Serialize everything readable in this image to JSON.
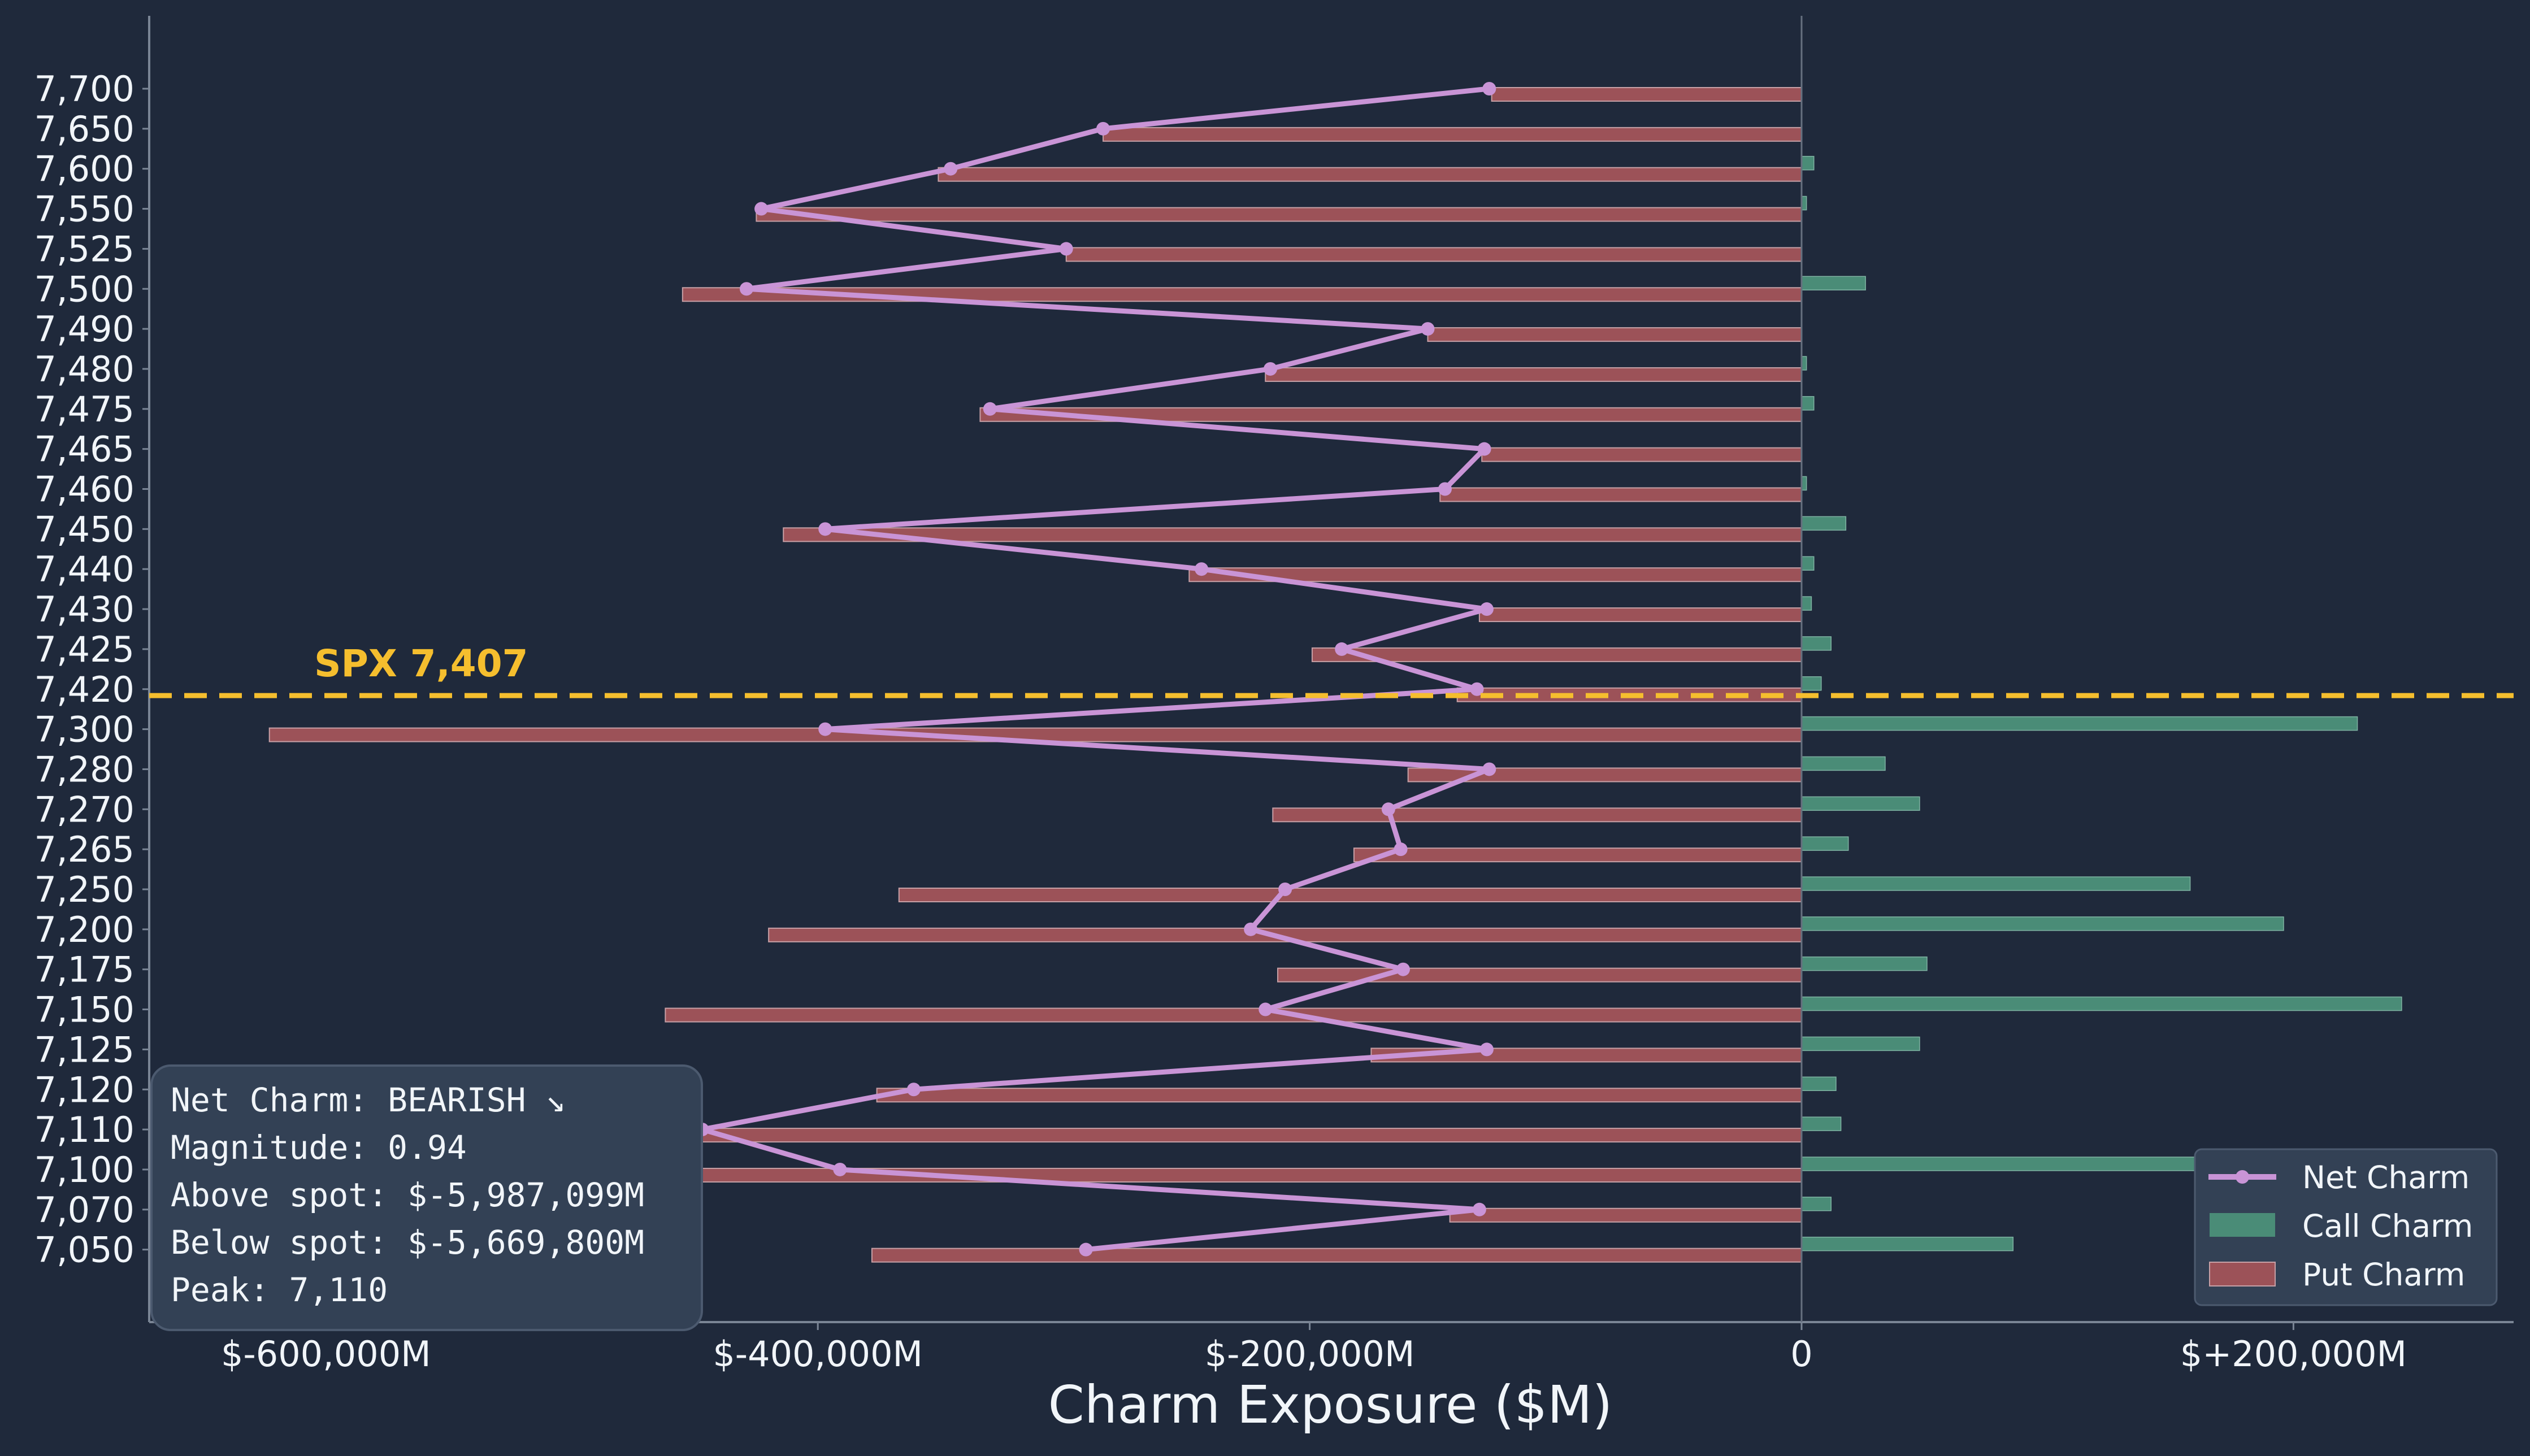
{
  "chart_data": {
    "type": "bar",
    "orientation": "horizontal",
    "xlabel": "Charm Exposure ($M)",
    "xticks": [
      {
        "value": -600000,
        "label": "$-600,000M"
      },
      {
        "value": -400000,
        "label": "$-400,000M"
      },
      {
        "value": -200000,
        "label": "$-200,000M"
      },
      {
        "value": 0,
        "label": "0"
      },
      {
        "value": 200000,
        "label": "$+200,000M"
      }
    ],
    "xlim": [
      -665000,
      287000
    ],
    "categories": [
      "7,700",
      "7,650",
      "7,600",
      "7,550",
      "7,525",
      "7,500",
      "7,490",
      "7,480",
      "7,475",
      "7,465",
      "7,460",
      "7,450",
      "7,440",
      "7,430",
      "7,425",
      "7,420",
      "7,300",
      "7,280",
      "7,270",
      "7,265",
      "7,250",
      "7,200",
      "7,175",
      "7,150",
      "7,125",
      "7,120",
      "7,110",
      "7,100",
      "7,070",
      "7,050"
    ],
    "series": [
      {
        "name": "Net Charm",
        "kind": "line",
        "color": "#c994d6",
        "values": [
          -127000,
          -284000,
          -346000,
          -423000,
          -299000,
          -429000,
          -152000,
          -216000,
          -330000,
          -129000,
          -145000,
          -397000,
          -244000,
          -128000,
          -187000,
          -132000,
          -397000,
          -127000,
          -168000,
          -163000,
          -210000,
          -224000,
          -162000,
          -218000,
          -128000,
          -361000,
          -447000,
          -391000,
          -131000,
          -291000
        ]
      },
      {
        "name": "Call Charm",
        "kind": "bar",
        "color": "#4a8c77",
        "values": [
          0,
          0,
          5000,
          2000,
          0,
          26000,
          0,
          2000,
          5000,
          0,
          2000,
          18000,
          5000,
          4000,
          12000,
          8000,
          226000,
          34000,
          48000,
          19000,
          158000,
          196000,
          51000,
          244000,
          48000,
          14000,
          16000,
          167000,
          12000,
          86000
        ]
      },
      {
        "name": "Put Charm",
        "kind": "bar",
        "color": "#9c5258",
        "values": [
          -126000,
          -284000,
          -351000,
          -425000,
          -299000,
          -455000,
          -152000,
          -218000,
          -334000,
          -130000,
          -147000,
          -414000,
          -249000,
          -131000,
          -199000,
          -140000,
          -623000,
          -160000,
          -215000,
          -182000,
          -367000,
          -420000,
          -213000,
          -462000,
          -175000,
          -376000,
          -464000,
          -558000,
          -143000,
          -378000
        ]
      }
    ],
    "spot": {
      "label": "SPX 7,407",
      "color": "#f5be2e"
    },
    "legend": {
      "position": "bottom-right",
      "entries": [
        "Net Charm",
        "Call Charm",
        "Put Charm"
      ]
    },
    "annotation_box": {
      "position": "bottom-left",
      "lines": [
        "Net Charm: BEARISH ↘",
        "Magnitude: 0.94",
        "Above spot: $-5,987,099M",
        "Below spot: $-5,669,800M",
        "Peak: 7,110"
      ]
    },
    "grid": false
  }
}
